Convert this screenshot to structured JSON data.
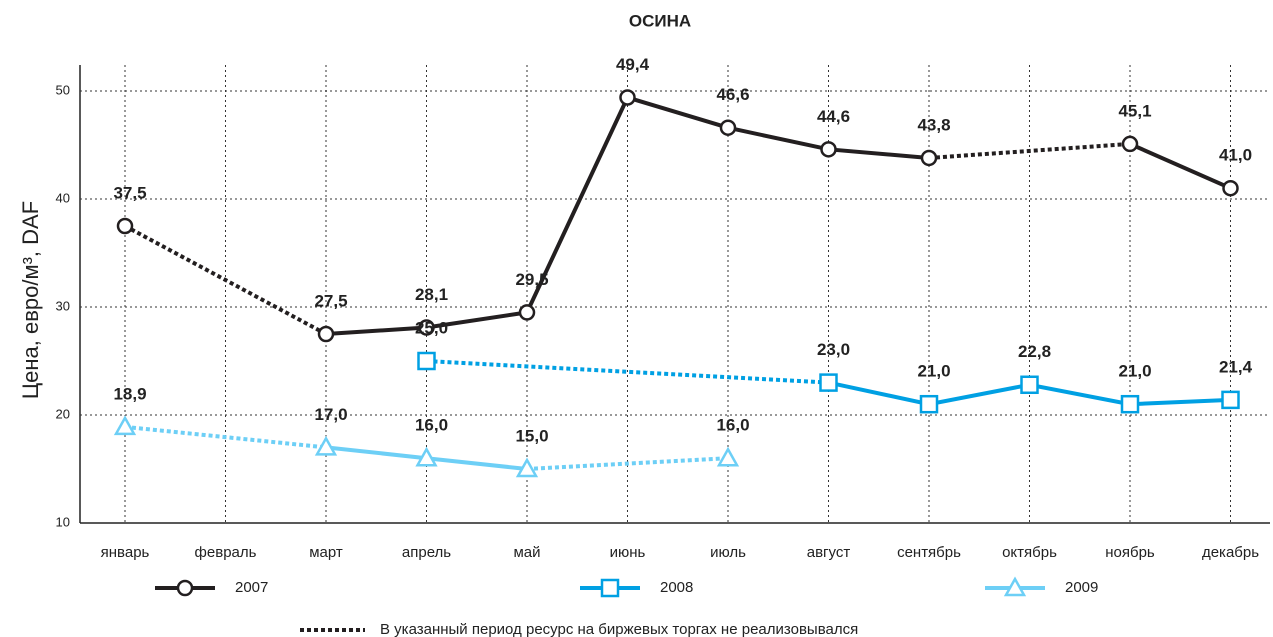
{
  "chart_data": {
    "type": "line",
    "title": "ОСИНА",
    "y_label": "Цена, евро/м³, DAF",
    "categories": [
      "январь",
      "февраль",
      "март",
      "апрель",
      "май",
      "июнь",
      "июль",
      "август",
      "сентябрь",
      "октябрь",
      "ноябрь",
      "декабрь"
    ],
    "ylim": [
      10,
      50
    ],
    "yticks": [
      10,
      20,
      30,
      40,
      50
    ],
    "grid": true,
    "note": "В указанный период ресурс на биржевых торгах не реализовывался",
    "series": [
      {
        "name": "2007",
        "color": "#231f20",
        "marker": "circle",
        "values": [
          37.5,
          null,
          27.5,
          28.1,
          29.5,
          49.4,
          46.6,
          44.6,
          43.8,
          null,
          45.1,
          41.0
        ],
        "value_labels": [
          "37,5",
          null,
          "27,5",
          "28,1",
          "29,5",
          "49,4",
          "46,6",
          "44,6",
          "43,8",
          null,
          "45,1",
          "41,0"
        ]
      },
      {
        "name": "2008",
        "color": "#00a0e3",
        "marker": "square",
        "values": [
          null,
          null,
          null,
          25.0,
          null,
          null,
          null,
          23.0,
          21.0,
          22.8,
          21.0,
          21.4
        ],
        "value_labels": [
          null,
          null,
          null,
          "25,0",
          null,
          null,
          null,
          "23,0",
          "21,0",
          "22,8",
          "21,0",
          "21,4"
        ]
      },
      {
        "name": "2009",
        "color": "#6dcff6",
        "marker": "triangle",
        "values": [
          18.9,
          null,
          17.0,
          16.0,
          15.0,
          null,
          16.0,
          null,
          null,
          null,
          null,
          null
        ],
        "value_labels": [
          "18,9",
          null,
          "17,0",
          "16,0",
          "15,0",
          null,
          "16,0",
          null,
          null,
          null,
          null,
          null
        ]
      }
    ]
  }
}
